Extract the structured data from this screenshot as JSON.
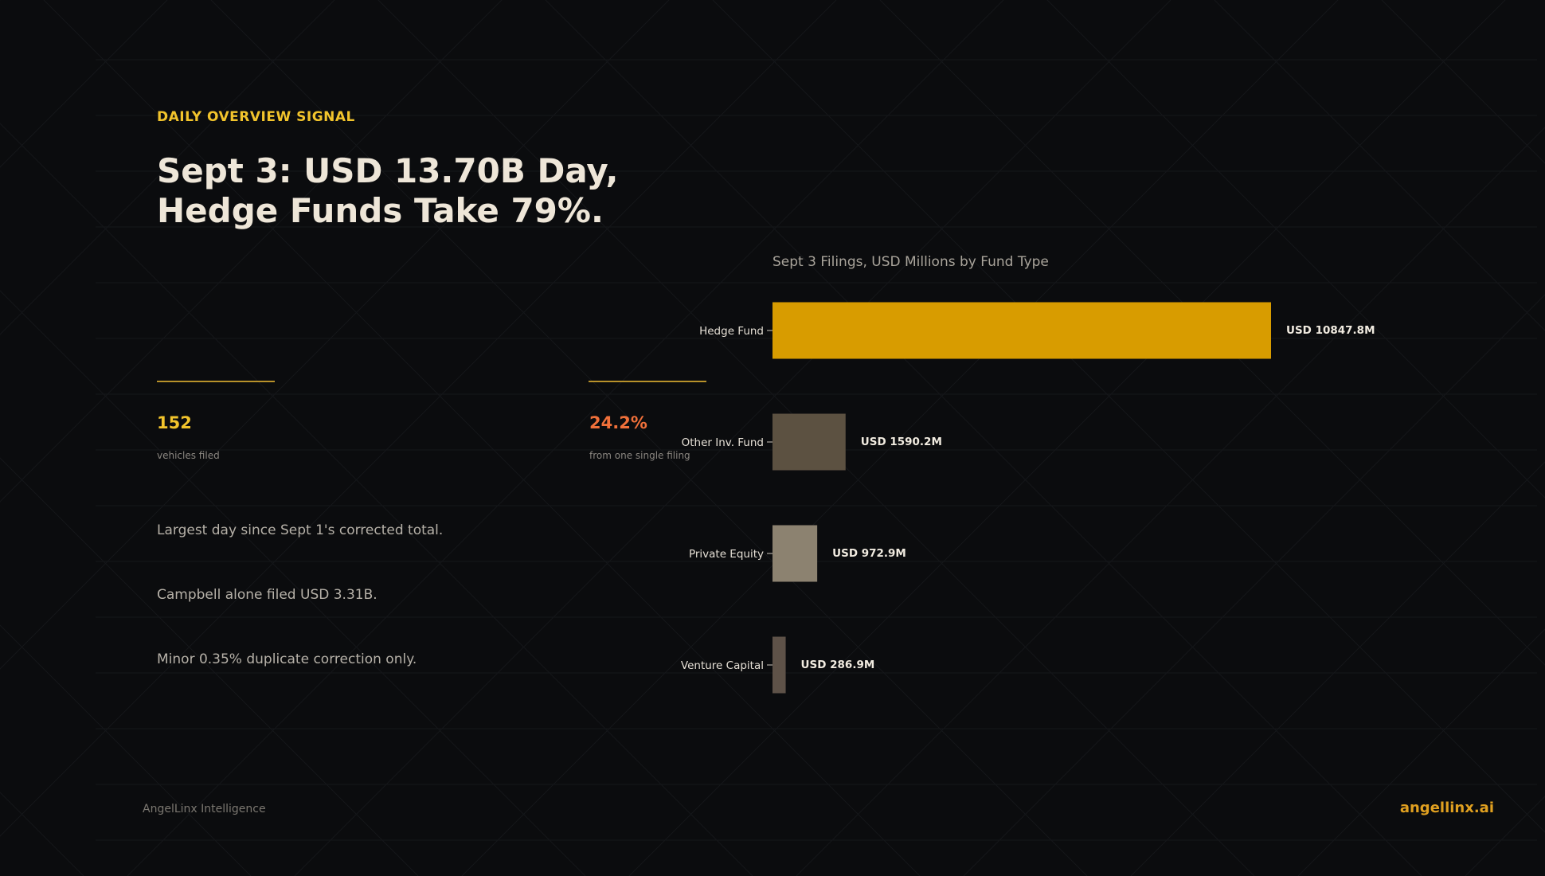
{
  "kicker": "DAILY OVERVIEW SIGNAL",
  "headline": {
    "line1": "Sept 3: USD 13.70B Day,",
    "line2": "Hedge Funds Take 79%."
  },
  "stats": [
    {
      "value": "152",
      "label": "vehicles filed",
      "color": "#f2c42c"
    },
    {
      "value": "24.2%",
      "label": "from one single filing",
      "color": "#f0703a"
    }
  ],
  "notes": [
    "Largest day since Sept 1's corrected total.",
    "Campbell alone filed USD 3.31B.",
    "Minor 0.35% duplicate correction only."
  ],
  "chart_data": {
    "type": "bar",
    "orientation": "horizontal",
    "title": "Sept 3 Filings, USD Millions by Fund Type",
    "categories": [
      "Hedge Fund",
      "Other Inv. Fund",
      "Private Equity",
      "Venture Capital"
    ],
    "values": [
      10847.8,
      1590.2,
      972.9,
      286.9
    ],
    "value_labels": [
      "USD 10847.8M",
      "USD 1590.2M",
      "USD 972.9M",
      "USD 286.9M"
    ],
    "colors": [
      "#d89c00",
      "#5c5141",
      "#8c8270",
      "#5e5248"
    ],
    "xlim": [
      0,
      10847.8
    ],
    "grid": false,
    "legend": "none"
  },
  "footer": {
    "brand": "AngelLinx Intelligence",
    "site": "angellinx.ai"
  }
}
